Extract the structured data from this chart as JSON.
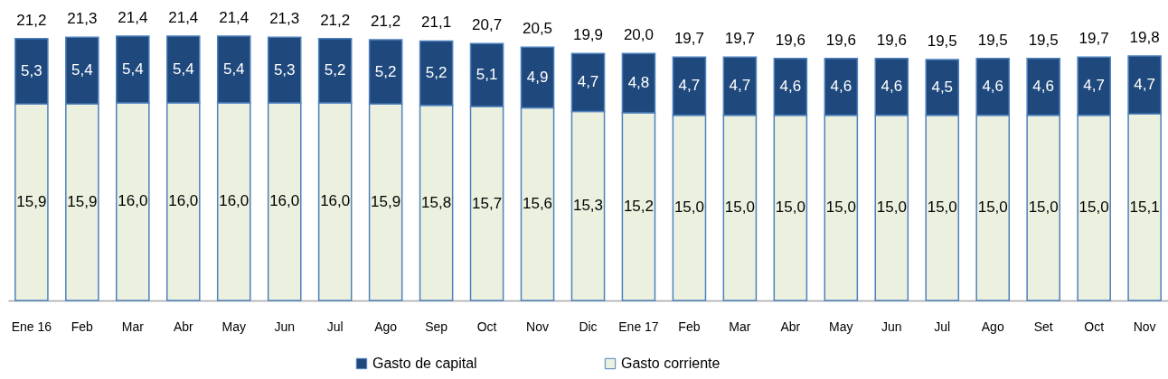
{
  "chart_data": {
    "type": "bar",
    "stacked": true,
    "categories": [
      "Ene 16",
      "Feb",
      "Mar",
      "Abr",
      "May",
      "Jun",
      "Jul",
      "Ago",
      "Sep",
      "Oct",
      "Nov",
      "Dic",
      "Ene 17",
      "Feb",
      "Mar",
      "Abr",
      "May",
      "Jun",
      "Jul",
      "Ago",
      "Set",
      "Oct",
      "Nov"
    ],
    "series": [
      {
        "name": "Gasto corriente",
        "color": "#ebf1de",
        "values": [
          15.9,
          15.9,
          16.0,
          16.0,
          16.0,
          16.0,
          16.0,
          15.9,
          15.8,
          15.7,
          15.6,
          15.3,
          15.2,
          15.0,
          15.0,
          15.0,
          15.0,
          15.0,
          15.0,
          15.0,
          15.0,
          15.0,
          15.1
        ],
        "value_labels": [
          "15,9",
          "15,9",
          "16,0",
          "16,0",
          "16,0",
          "16,0",
          "16,0",
          "15,9",
          "15,8",
          "15,7",
          "15,6",
          "15,3",
          "15,2",
          "15,0",
          "15,0",
          "15,0",
          "15,0",
          "15,0",
          "15,0",
          "15,0",
          "15,0",
          "15,0",
          "15,1"
        ]
      },
      {
        "name": "Gasto de capital",
        "color": "#1f497d",
        "values": [
          5.3,
          5.4,
          5.4,
          5.4,
          5.4,
          5.3,
          5.2,
          5.2,
          5.2,
          5.1,
          4.9,
          4.7,
          4.8,
          4.7,
          4.7,
          4.6,
          4.6,
          4.6,
          4.5,
          4.6,
          4.6,
          4.7,
          4.7
        ],
        "value_labels": [
          "5,3",
          "5,4",
          "5,4",
          "5,4",
          "5,4",
          "5,3",
          "5,2",
          "5,2",
          "5,2",
          "5,1",
          "4,9",
          "4,7",
          "4,8",
          "4,7",
          "4,7",
          "4,6",
          "4,6",
          "4,6",
          "4,5",
          "4,6",
          "4,6",
          "4,7",
          "4,7"
        ]
      }
    ],
    "totals": [
      "21,2",
      "21,3",
      "21,4",
      "21,4",
      "21,4",
      "21,3",
      "21,2",
      "21,2",
      "21,1",
      "20,7",
      "20,5",
      "19,9",
      "20,0",
      "19,7",
      "19,7",
      "19,6",
      "19,6",
      "19,6",
      "19,5",
      "19,5",
      "19,5",
      "19,7",
      "19,8"
    ],
    "legend": "bottom",
    "tick_labels": "x"
  }
}
